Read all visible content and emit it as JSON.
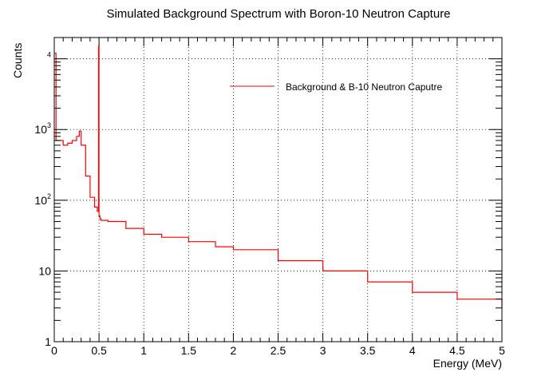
{
  "chart_data": {
    "type": "line",
    "title": "Simulated Background Spectrum with Boron-10 Neutron Capture",
    "xlabel": "Energy (MeV)",
    "ylabel": "Counts",
    "xlim": [
      0,
      5
    ],
    "ylim": [
      1,
      20000
    ],
    "yscale": "log",
    "grid": true,
    "legend_position": "top-right",
    "x_ticks": [
      "0",
      "0.5",
      "1",
      "1.5",
      "2",
      "2.5",
      "3",
      "3.5",
      "4",
      "4.5",
      "5"
    ],
    "y_ticks": [
      {
        "value": 1,
        "label": "1"
      },
      {
        "value": 10,
        "label": "10"
      },
      {
        "value": 100,
        "label": "10",
        "exp": "2"
      },
      {
        "value": 1000,
        "label": "10",
        "exp": "3"
      },
      {
        "value": 10000,
        "label": "",
        "exp": "4"
      }
    ],
    "series": [
      {
        "name": "Background & B-10 Neutron Caputre",
        "color": "#ff0000",
        "x": [
          0.0,
          0.02,
          0.05,
          0.1,
          0.15,
          0.2,
          0.25,
          0.28,
          0.3,
          0.35,
          0.4,
          0.45,
          0.48,
          0.495,
          0.5,
          0.51,
          0.52,
          0.6,
          0.8,
          1.0,
          1.2,
          1.5,
          1.8,
          2.0,
          2.5,
          3.0,
          3.5,
          4.0,
          4.5,
          5.0
        ],
        "y": [
          12000,
          700,
          700,
          600,
          640,
          700,
          800,
          950,
          600,
          220,
          110,
          80,
          70,
          15000,
          60,
          55,
          52,
          50,
          40,
          33,
          30,
          26,
          22,
          20,
          14,
          10,
          7,
          5,
          4,
          3
        ]
      }
    ]
  }
}
